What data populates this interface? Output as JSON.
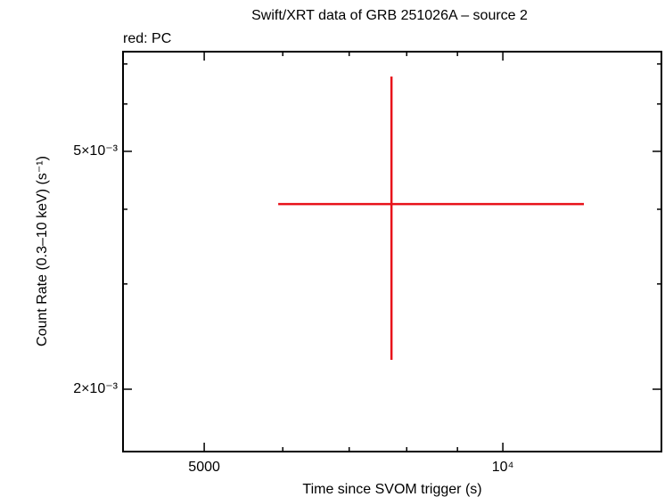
{
  "chart_data": {
    "type": "errorbar",
    "title": "Swift/XRT data of GRB 251026A – source 2",
    "subtitle": "red: PC",
    "xlabel": "Time since SVOM trigger (s)",
    "ylabel": "Count Rate (0.3–10 keV) (s⁻¹)",
    "xscale": "log",
    "yscale": "log",
    "xlim": [
      4141,
      14450
    ],
    "ylim": [
      0.001573,
      0.00734
    ],
    "xticks": [
      5000,
      {
        "value": 10000,
        "label": "10⁴"
      }
    ],
    "xminorticks": [
      6000,
      7000,
      8000,
      9000
    ],
    "yticks": [
      {
        "value": 0.002,
        "label": "2×10⁻³"
      },
      {
        "value": 0.005,
        "label": "5×10⁻³"
      }
    ],
    "yminorticks": [
      0.003,
      0.004,
      0.006,
      0.007
    ],
    "series": [
      {
        "name": "PC",
        "color": "#e8121a",
        "x": [
          7722
        ],
        "xerr_minus": [
          1785
        ],
        "xerr_plus": [
          4348
        ],
        "y": [
          0.00408
        ],
        "yerr_minus": [
          0.00184
        ],
        "yerr_plus": [
          0.00259
        ]
      }
    ]
  }
}
